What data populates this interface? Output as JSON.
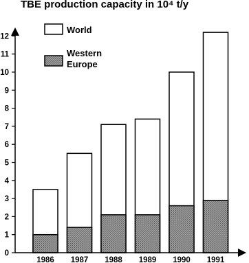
{
  "chart_data": {
    "type": "bar",
    "title": "TBE production capacity in 10⁴ t/y",
    "categories": [
      "1986",
      "1987",
      "1988",
      "1989",
      "1990",
      "1991"
    ],
    "series": [
      {
        "name": "World",
        "values": [
          3.5,
          5.5,
          7.1,
          7.4,
          10.0,
          12.2
        ]
      },
      {
        "name": "Western Europe",
        "values": [
          1.0,
          1.4,
          2.1,
          2.1,
          2.6,
          2.9
        ]
      }
    ],
    "y_ticks": [
      "0",
      "1",
      "2",
      "3",
      "4",
      "5",
      "6",
      "7",
      "8",
      "9",
      "10",
      "11",
      "12"
    ],
    "ylim": [
      0,
      12.5
    ],
    "legend": {
      "position": "top-left",
      "world_label": "World",
      "europe_label_line1": "Western",
      "europe_label_line2": "Europe"
    },
    "colors": {
      "world": "#ffffff",
      "western_europe": "#8c8c8c",
      "axis": "#000000"
    }
  }
}
